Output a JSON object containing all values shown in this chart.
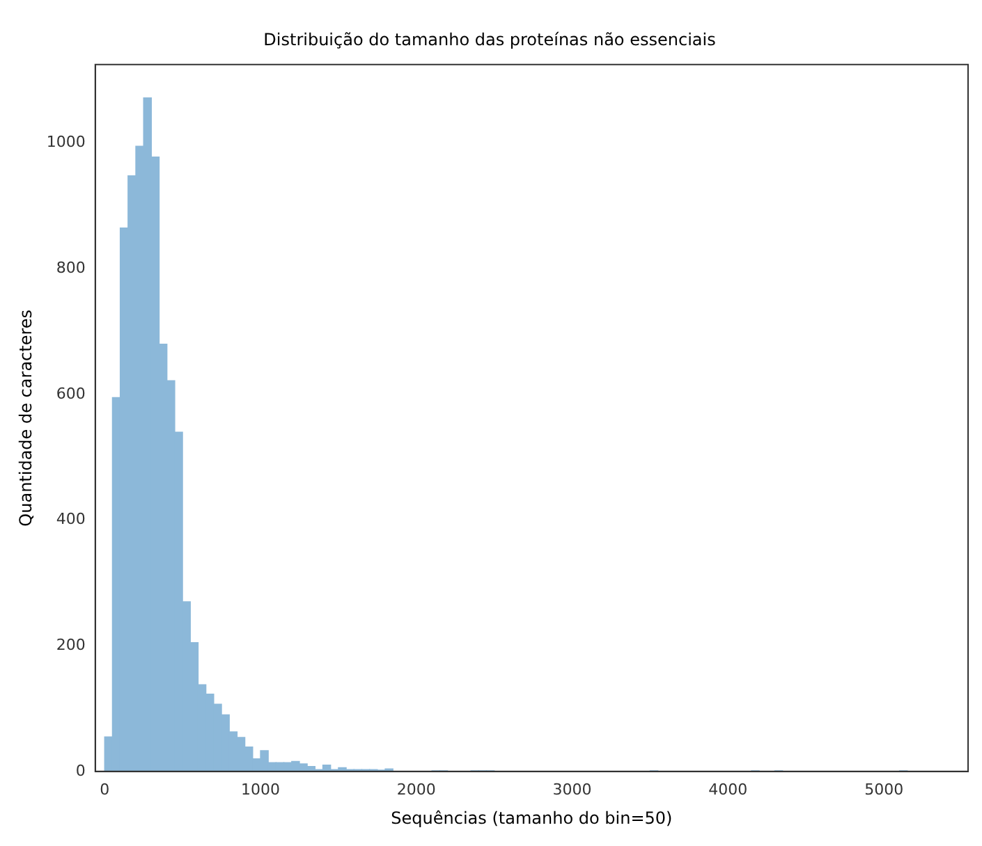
{
  "chart_data": {
    "type": "histogram",
    "title": "Distribuição do tamanho das proteínas não essenciais",
    "xlabel": "Sequências (tamanho do bin=50)",
    "ylabel": "Quantidade de caracteres",
    "color": "#8cb8d9",
    "bins": [
      0,
      50,
      100,
      150,
      200,
      250,
      300,
      350,
      400,
      450,
      500,
      550,
      600,
      650,
      700,
      750,
      800,
      850,
      900,
      950,
      1000,
      1050,
      1100,
      1150,
      1200,
      1250,
      1300,
      1350,
      1400,
      1450,
      1500,
      1550,
      1600,
      1650,
      1700,
      1750,
      1800,
      1850,
      1900,
      1950,
      2000,
      2050,
      2100,
      2150,
      2200,
      2250,
      2300,
      2350,
      2400,
      2450,
      2500,
      2550,
      2600,
      2650,
      2700,
      2750,
      2800,
      2850,
      2900,
      2950,
      3000,
      3050,
      3100,
      3150,
      3200,
      3250,
      3300,
      3350,
      3400,
      3450,
      3500,
      3550,
      3600,
      3650,
      3700,
      3750,
      3800,
      3850,
      3900,
      3950,
      4000,
      4050,
      4100,
      4150,
      4200,
      4250,
      4300,
      4350,
      4400,
      4450,
      4500,
      4550,
      4600,
      4650,
      4700,
      4750,
      4800,
      4850,
      4900,
      4950,
      5000,
      5050,
      5100,
      5150
    ],
    "values": [
      55,
      595,
      865,
      948,
      995,
      1072,
      978,
      680,
      622,
      540,
      270,
      205,
      138,
      123,
      107,
      90,
      63,
      54,
      39,
      20,
      33,
      14,
      14,
      14,
      16,
      12,
      8,
      3,
      10,
      3,
      6,
      3,
      3,
      3,
      3,
      2,
      4,
      0,
      0,
      0,
      0,
      0,
      1,
      1,
      0,
      0,
      0,
      1,
      1,
      1,
      0,
      0,
      0,
      0,
      0,
      0,
      0,
      0,
      0,
      0,
      0,
      0,
      0,
      0,
      0,
      0,
      0,
      0,
      0,
      0,
      1,
      0,
      0,
      0,
      0,
      0,
      0,
      0,
      0,
      0,
      0,
      0,
      0,
      1,
      0,
      0,
      1,
      0,
      0,
      0,
      0,
      0,
      0,
      0,
      0,
      0,
      0,
      0,
      0,
      0,
      0,
      0,
      1
    ],
    "xlim": [
      -60,
      5540
    ],
    "ylim": [
      0,
      1125
    ],
    "xticks": [
      0,
      1000,
      2000,
      3000,
      4000,
      5000
    ],
    "yticks": [
      0,
      200,
      400,
      600,
      800,
      1000
    ],
    "grid": false,
    "legend": false
  }
}
